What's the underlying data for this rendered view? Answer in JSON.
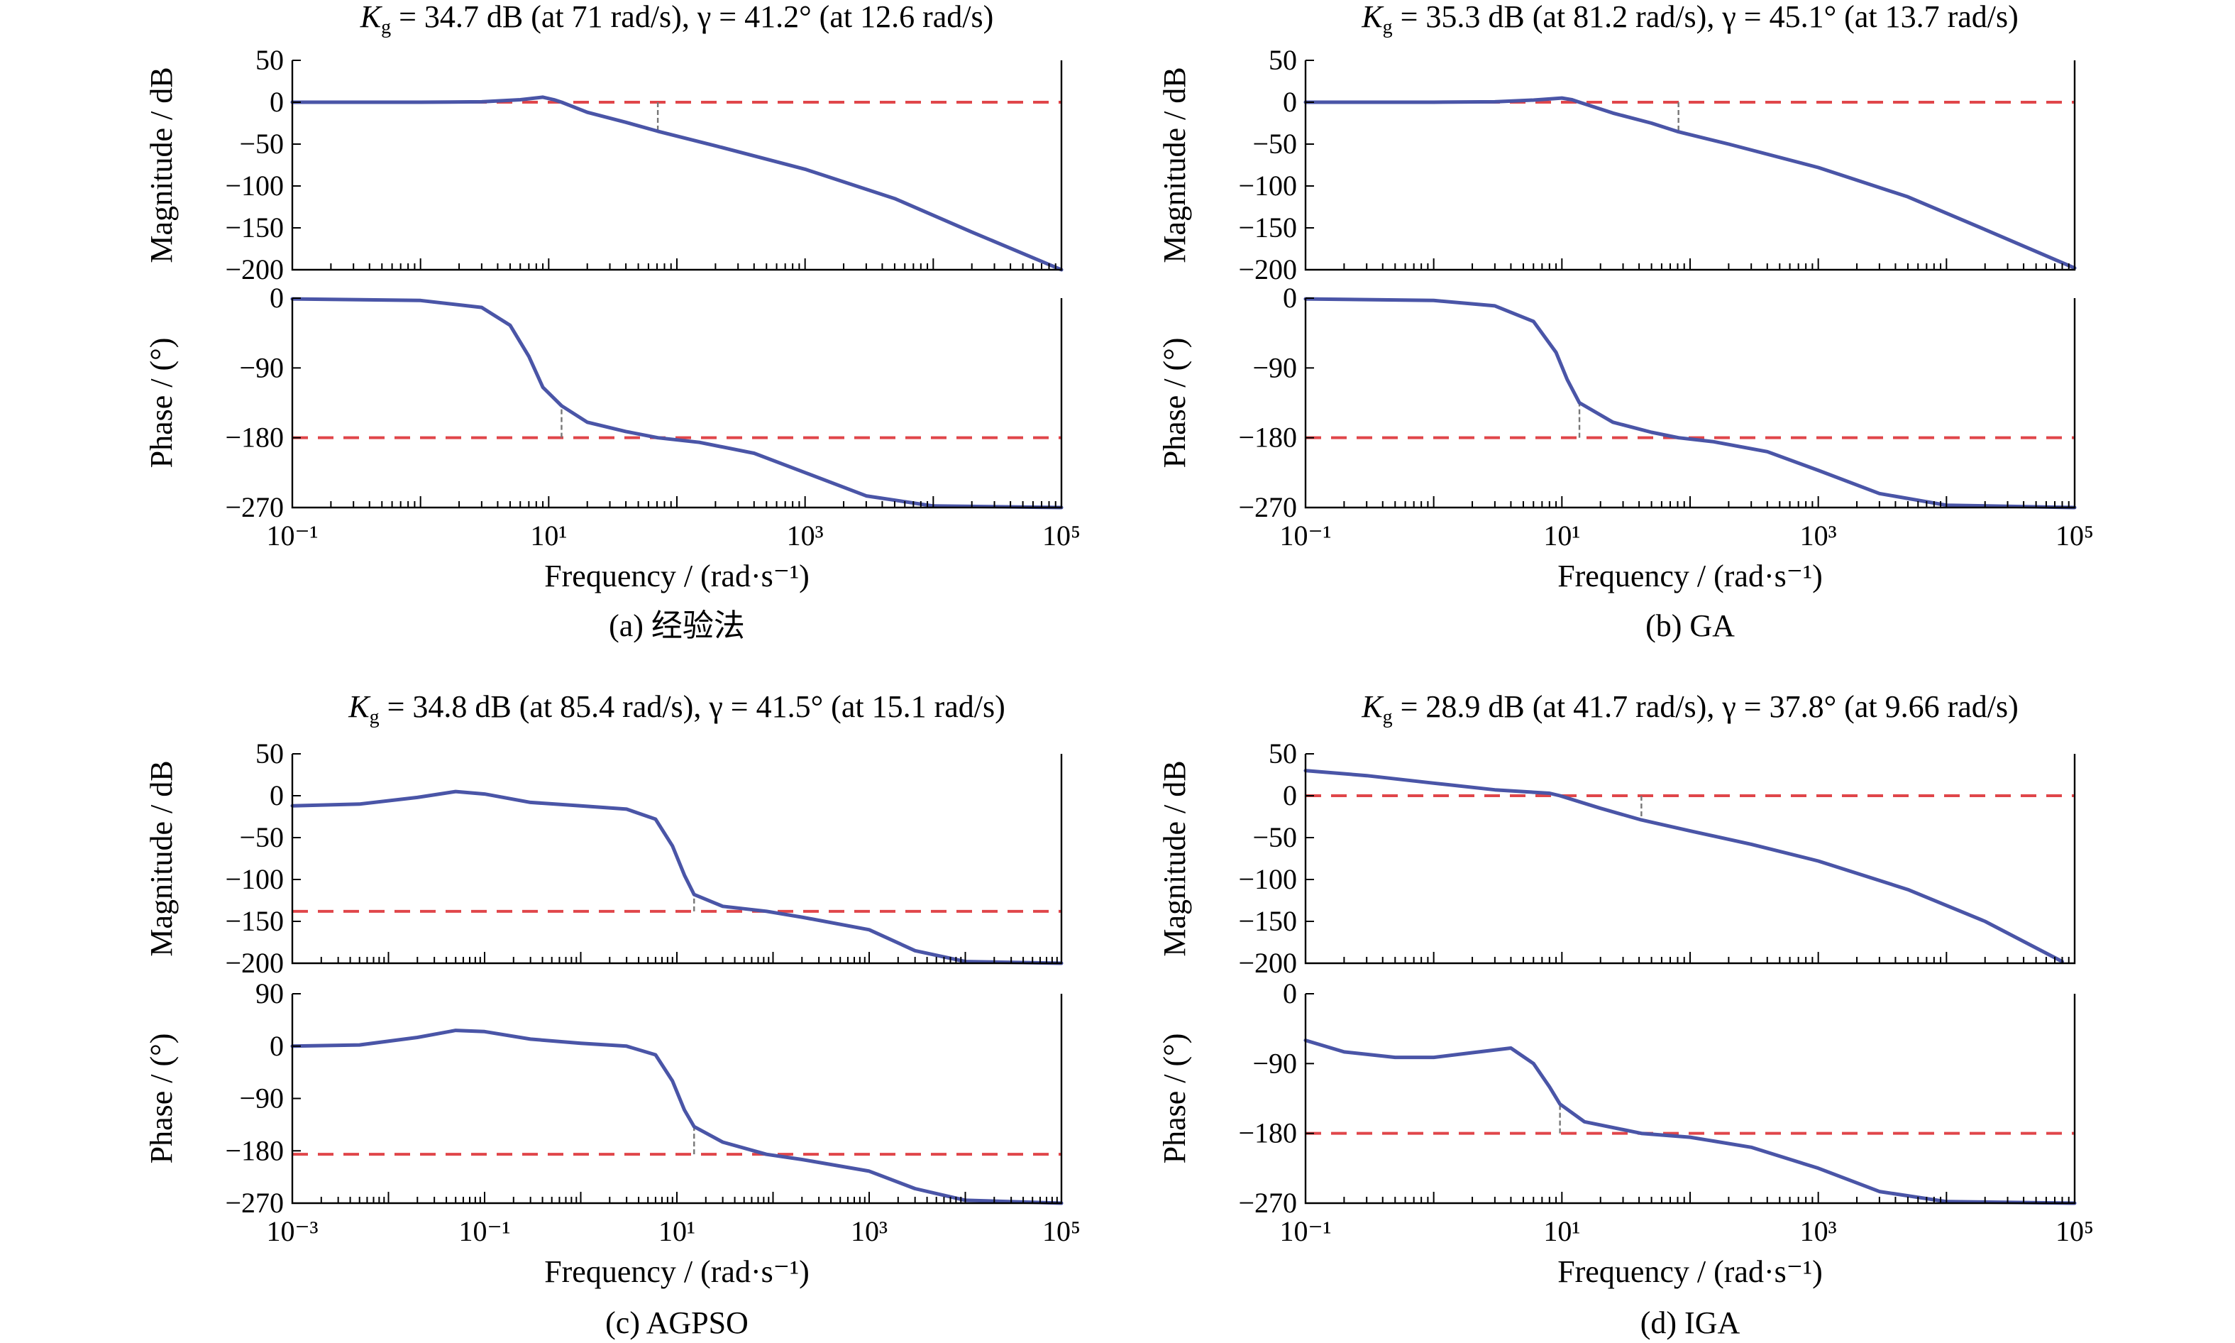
{
  "chart_data": [
    {
      "type": "line",
      "caption": "(a) 经验法",
      "title": {
        "prefix": "K",
        "sub": "g",
        "text": " = 34.7 dB (at 71 rad/s), γ = 41.2° (at 12.6 rad/s)"
      },
      "xlabel": "Frequency / (rad·s⁻¹)",
      "xlim": [
        0.1,
        100000
      ],
      "x_tick_labels": [
        "10⁻¹",
        "10¹",
        "10³",
        "10⁵"
      ],
      "markers_x": [
        12.6,
        71
      ],
      "magnitude": {
        "ylabel": "Magnitude / dB",
        "ylim": [
          -200,
          50
        ],
        "y_ticks": [
          50,
          0,
          -50,
          -100,
          -150,
          -200
        ],
        "y_tick_labels": [
          "50",
          "0",
          "−50",
          "−100",
          "−150",
          "−200"
        ],
        "reference": 0,
        "points": [
          [
            0.1,
            0
          ],
          [
            1,
            0
          ],
          [
            3,
            0.5
          ],
          [
            6,
            3
          ],
          [
            9,
            6
          ],
          [
            11,
            3
          ],
          [
            12.6,
            0
          ],
          [
            20,
            -12
          ],
          [
            40,
            -24
          ],
          [
            71,
            -34.7
          ],
          [
            200,
            -52
          ],
          [
            1000,
            -80
          ],
          [
            5000,
            -115
          ],
          [
            20000,
            -155
          ],
          [
            100000,
            -200
          ]
        ]
      },
      "phase": {
        "ylabel": "Phase / (°)",
        "ylim": [
          -270,
          0
        ],
        "y_ticks": [
          0,
          -90,
          -180,
          -270
        ],
        "y_tick_labels": [
          "0",
          "−90",
          "−180",
          "−270"
        ],
        "reference": -180,
        "points": [
          [
            0.1,
            -1
          ],
          [
            1,
            -3
          ],
          [
            3,
            -12
          ],
          [
            5,
            -35
          ],
          [
            7,
            -75
          ],
          [
            9,
            -115
          ],
          [
            12.6,
            -138.8
          ],
          [
            20,
            -160
          ],
          [
            40,
            -172
          ],
          [
            71,
            -180
          ],
          [
            150,
            -186
          ],
          [
            400,
            -200
          ],
          [
            1000,
            -225
          ],
          [
            3000,
            -255
          ],
          [
            10000,
            -268
          ],
          [
            100000,
            -270
          ]
        ]
      }
    },
    {
      "type": "line",
      "caption": "(b) GA",
      "title": {
        "prefix": "K",
        "sub": "g",
        "text": " = 35.3 dB (at 81.2 rad/s), γ = 45.1° (at 13.7 rad/s)"
      },
      "xlabel": "Frequency / (rad·s⁻¹)",
      "xlim": [
        0.1,
        100000
      ],
      "x_tick_labels": [
        "10⁻¹",
        "10¹",
        "10³",
        "10⁵"
      ],
      "markers_x": [
        13.7,
        81.2
      ],
      "magnitude": {
        "ylabel": "Magnitude / dB",
        "ylim": [
          -200,
          50
        ],
        "y_ticks": [
          50,
          0,
          -50,
          -100,
          -150,
          -200
        ],
        "y_tick_labels": [
          "50",
          "0",
          "−50",
          "−100",
          "−150",
          "−200"
        ],
        "reference": 0,
        "points": [
          [
            0.1,
            0
          ],
          [
            1,
            0
          ],
          [
            3,
            0.5
          ],
          [
            6,
            2.5
          ],
          [
            10,
            5
          ],
          [
            12,
            3
          ],
          [
            13.7,
            0
          ],
          [
            25,
            -13
          ],
          [
            50,
            -25
          ],
          [
            81.2,
            -35.3
          ],
          [
            200,
            -50
          ],
          [
            1000,
            -78
          ],
          [
            5000,
            -113
          ],
          [
            20000,
            -152
          ],
          [
            100000,
            -198
          ]
        ]
      },
      "phase": {
        "ylabel": "Phase / (°)",
        "ylim": [
          -270,
          0
        ],
        "y_ticks": [
          0,
          -90,
          -180,
          -270
        ],
        "y_tick_labels": [
          "0",
          "−90",
          "−180",
          "−270"
        ],
        "reference": -180,
        "points": [
          [
            0.1,
            -1
          ],
          [
            1,
            -3
          ],
          [
            3,
            -10
          ],
          [
            6,
            -30
          ],
          [
            9,
            -70
          ],
          [
            11,
            -105
          ],
          [
            13.7,
            -134.9
          ],
          [
            25,
            -160
          ],
          [
            50,
            -173
          ],
          [
            81.2,
            -180
          ],
          [
            150,
            -185
          ],
          [
            400,
            -198
          ],
          [
            1000,
            -222
          ],
          [
            3000,
            -252
          ],
          [
            10000,
            -267
          ],
          [
            100000,
            -270
          ]
        ]
      }
    },
    {
      "type": "line",
      "caption": "(c) AGPSO",
      "title": {
        "prefix": "K",
        "sub": "g",
        "text": " = 34.8 dB (at 85.4 rad/s), γ = 41.5° (at 15.1 rad/s)"
      },
      "xlabel": "Frequency / (rad·s⁻¹)",
      "xlim": [
        0.001,
        100000
      ],
      "x_tick_labels": [
        "10⁻³",
        "10⁻¹",
        "10¹",
        "10³",
        "10⁵"
      ],
      "markers_x": [
        15.1,
        85.4
      ],
      "magnitude": {
        "ylabel": "Magnitude / dB",
        "ylim": [
          -200,
          50
        ],
        "y_ticks": [
          50,
          0,
          -50,
          -100,
          -150,
          -200
        ],
        "y_tick_labels": [
          "50",
          "0",
          "−50",
          "−100",
          "−150",
          "−200"
        ],
        "reference": -138,
        "points": [
          [
            0.001,
            -12
          ],
          [
            0.005,
            -10
          ],
          [
            0.02,
            -2
          ],
          [
            0.05,
            5
          ],
          [
            0.1,
            2
          ],
          [
            0.3,
            -8
          ],
          [
            1,
            -12
          ],
          [
            3,
            -16
          ],
          [
            6,
            -28
          ],
          [
            9,
            -60
          ],
          [
            12,
            -95
          ],
          [
            15.1,
            -118
          ],
          [
            30,
            -132
          ],
          [
            85.4,
            -138
          ],
          [
            200,
            -145
          ],
          [
            1000,
            -160
          ],
          [
            3000,
            -185
          ],
          [
            10000,
            -198
          ],
          [
            100000,
            -200
          ]
        ]
      },
      "phase": {
        "ylabel": "Phase / (°)",
        "ylim": [
          -270,
          90
        ],
        "y_ticks": [
          90,
          0,
          -90,
          -180,
          -270
        ],
        "y_tick_labels": [
          "90",
          "0",
          "−90",
          "−180",
          "−270"
        ],
        "reference": -186,
        "points": [
          [
            0.001,
            0
          ],
          [
            0.005,
            2
          ],
          [
            0.02,
            15
          ],
          [
            0.05,
            27
          ],
          [
            0.1,
            25
          ],
          [
            0.3,
            12
          ],
          [
            1,
            5
          ],
          [
            3,
            0
          ],
          [
            6,
            -15
          ],
          [
            9,
            -60
          ],
          [
            12,
            -110
          ],
          [
            15.1,
            -138.5
          ],
          [
            30,
            -165
          ],
          [
            85.4,
            -186
          ],
          [
            200,
            -195
          ],
          [
            1000,
            -215
          ],
          [
            3000,
            -245
          ],
          [
            10000,
            -265
          ],
          [
            100000,
            -270
          ]
        ]
      }
    },
    {
      "type": "line",
      "caption": "(d) IGA",
      "title": {
        "prefix": "K",
        "sub": "g",
        "text": " = 28.9 dB (at 41.7 rad/s), γ = 37.8° (at 9.66 rad/s)"
      },
      "xlabel": "Frequency / (rad·s⁻¹)",
      "xlim": [
        0.1,
        100000
      ],
      "x_tick_labels": [
        "10⁻¹",
        "10¹",
        "10³",
        "10⁵"
      ],
      "markers_x": [
        9.66,
        41.7
      ],
      "magnitude": {
        "ylabel": "Magnitude / dB",
        "ylim": [
          -200,
          50
        ],
        "y_ticks": [
          50,
          0,
          -50,
          -100,
          -150,
          -200
        ],
        "y_tick_labels": [
          "50",
          "0",
          "−50",
          "−100",
          "−150",
          "−200"
        ],
        "reference": 0,
        "points": [
          [
            0.1,
            30
          ],
          [
            0.3,
            24
          ],
          [
            1,
            15
          ],
          [
            3,
            7
          ],
          [
            8,
            3
          ],
          [
            9.66,
            0
          ],
          [
            20,
            -15
          ],
          [
            41.7,
            -28.9
          ],
          [
            100,
            -42
          ],
          [
            300,
            -58
          ],
          [
            1000,
            -78
          ],
          [
            5000,
            -112
          ],
          [
            20000,
            -150
          ],
          [
            80000,
            -198
          ]
        ]
      },
      "phase": {
        "ylabel": "Phase / (°)",
        "ylim": [
          -270,
          0
        ],
        "y_ticks": [
          0,
          -90,
          -180,
          -270
        ],
        "y_tick_labels": [
          "0",
          "−90",
          "−180",
          "−270"
        ],
        "reference": -180,
        "points": [
          [
            0.1,
            -60
          ],
          [
            0.2,
            -75
          ],
          [
            0.5,
            -82
          ],
          [
            1,
            -82
          ],
          [
            2,
            -76
          ],
          [
            4,
            -70
          ],
          [
            6,
            -90
          ],
          [
            8,
            -120
          ],
          [
            9.66,
            -142.2
          ],
          [
            15,
            -165
          ],
          [
            41.7,
            -180
          ],
          [
            100,
            -185
          ],
          [
            300,
            -198
          ],
          [
            1000,
            -225
          ],
          [
            3000,
            -255
          ],
          [
            10000,
            -268
          ],
          [
            100000,
            -270
          ]
        ]
      }
    }
  ]
}
